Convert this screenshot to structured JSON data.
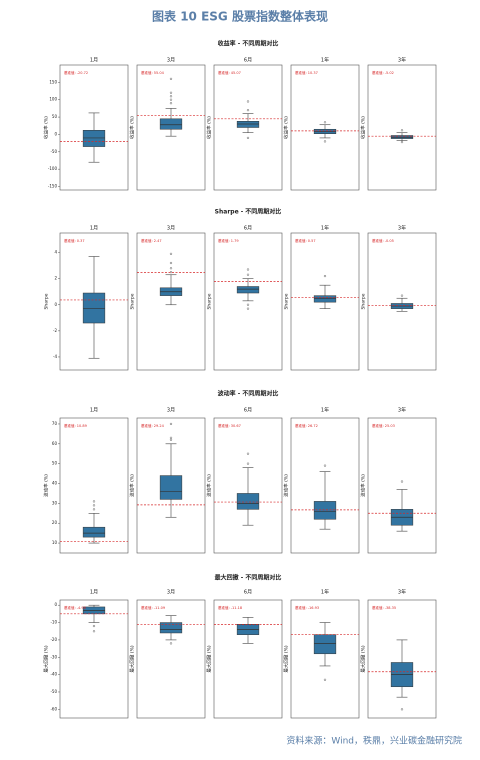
{
  "title": "图表 10  ESG 股票指数整体表现",
  "source": "资料来源：Wind，秩鼎，兴业碳金融研究院",
  "chart_data": [
    {
      "type": "box",
      "title": "收益率 - 不同周期对比",
      "ylabel": "收益率 (%)",
      "ylim": [
        -160,
        200
      ],
      "yticks": [
        -150,
        -100,
        -50,
        0,
        50,
        100,
        150
      ],
      "color": "#3274a1",
      "benchmark_color": "#d62728",
      "panels": [
        {
          "title": "1月",
          "whislo": -80,
          "q1": -35,
          "median": -10,
          "q3": 12,
          "whishi": 62,
          "fliers": [],
          "benchmark": -20.72,
          "benchmark_label": "基准值: -20.72"
        },
        {
          "title": "3月",
          "whislo": -5,
          "q1": 15,
          "median": 28,
          "q3": 45,
          "whishi": 75,
          "fliers": [
            90,
            100,
            110,
            120,
            160
          ],
          "benchmark": 55.04,
          "benchmark_label": "基准值: 55.04"
        },
        {
          "title": "6月",
          "whislo": 5,
          "q1": 20,
          "median": 30,
          "q3": 38,
          "whishi": 60,
          "fliers": [
            70,
            95,
            -10
          ],
          "benchmark": 45.07,
          "benchmark_label": "基准值: 45.07"
        },
        {
          "title": "1年",
          "whislo": -10,
          "q1": 2,
          "median": 8,
          "q3": 15,
          "whishi": 28,
          "fliers": [
            35,
            -20
          ],
          "benchmark": 10.37,
          "benchmark_label": "基准值: 10.37"
        },
        {
          "title": "3年",
          "whislo": -18,
          "q1": -12,
          "median": -8,
          "q3": -3,
          "whishi": 5,
          "fliers": [
            12,
            -22
          ],
          "benchmark": -5.02,
          "benchmark_label": "基准值: -5.02"
        }
      ]
    },
    {
      "type": "box",
      "title": "Sharpe - 不同周期对比",
      "ylabel": "Sharpe",
      "ylim": [
        -5,
        5.5
      ],
      "yticks": [
        -4,
        -2,
        0,
        2,
        4
      ],
      "color": "#3274a1",
      "benchmark_color": "#d62728",
      "panels": [
        {
          "title": "1月",
          "whislo": -4.1,
          "q1": -1.4,
          "median": -0.3,
          "q3": 0.9,
          "whishi": 3.7,
          "fliers": [],
          "benchmark": 0.37,
          "benchmark_label": "基准值: 0.37"
        },
        {
          "title": "3月",
          "whislo": 0,
          "q1": 0.7,
          "median": 1.0,
          "q3": 1.3,
          "whishi": 2.3,
          "fliers": [
            2.5,
            2.8,
            3.2,
            3.9
          ],
          "benchmark": 2.47,
          "benchmark_label": "基准值: 2.47"
        },
        {
          "title": "6月",
          "whislo": 0.3,
          "q1": 0.9,
          "median": 1.2,
          "q3": 1.4,
          "whishi": 2,
          "fliers": [
            2.3,
            2.7,
            0,
            -0.3
          ],
          "benchmark": 1.79,
          "benchmark_label": "基准值: 1.79"
        },
        {
          "title": "1年",
          "whislo": -0.3,
          "q1": 0.2,
          "median": 0.5,
          "q3": 0.7,
          "whishi": 1.5,
          "fliers": [
            2.2
          ],
          "benchmark": 0.57,
          "benchmark_label": "基准值: 0.57"
        },
        {
          "title": "3年",
          "whislo": -0.5,
          "q1": -0.3,
          "median": -0.1,
          "q3": 0.1,
          "whishi": 0.5,
          "fliers": [
            0.7
          ],
          "benchmark": -0.05,
          "benchmark_label": "基准值: -0.05"
        }
      ]
    },
    {
      "type": "box",
      "title": "波动率 - 不同周期对比",
      "ylabel": "波动率 (%)",
      "ylim": [
        5,
        73
      ],
      "yticks": [
        10,
        20,
        30,
        40,
        50,
        60,
        70
      ],
      "color": "#3274a1",
      "benchmark_color": "#d62728",
      "panels": [
        {
          "title": "1月",
          "whislo": 10,
          "q1": 13,
          "median": 15,
          "q3": 18,
          "whishi": 25,
          "fliers": [
            27,
            29,
            31
          ],
          "benchmark": 10.89,
          "benchmark_label": "基准值: 10.89"
        },
        {
          "title": "3月",
          "whislo": 23,
          "q1": 32,
          "median": 36,
          "q3": 44,
          "whishi": 60,
          "fliers": [
            62,
            63,
            70
          ],
          "benchmark": 29.24,
          "benchmark_label": "基准值: 29.24"
        },
        {
          "title": "6月",
          "whislo": 19,
          "q1": 27,
          "median": 30,
          "q3": 35,
          "whishi": 48,
          "fliers": [
            50,
            55
          ],
          "benchmark": 30.67,
          "benchmark_label": "基准值: 30.67"
        },
        {
          "title": "1年",
          "whislo": 17,
          "q1": 22,
          "median": 26,
          "q3": 31,
          "whishi": 46,
          "fliers": [
            49
          ],
          "benchmark": 26.72,
          "benchmark_label": "基准值: 26.72"
        },
        {
          "title": "3年",
          "whislo": 16,
          "q1": 19,
          "median": 23,
          "q3": 27,
          "whishi": 37,
          "fliers": [
            41
          ],
          "benchmark": 25.03,
          "benchmark_label": "基准值: 25.03"
        }
      ]
    },
    {
      "type": "box",
      "title": "最大回撤 - 不同周期对比",
      "ylabel": "最大回撤 (%)",
      "ylim": [
        -65,
        3
      ],
      "yticks": [
        0,
        -10,
        -20,
        -30,
        -40,
        -50,
        -60
      ],
      "color": "#3274a1",
      "benchmark_color": "#d62728",
      "panels": [
        {
          "title": "1月",
          "whislo": -10,
          "q1": -5,
          "median": -3,
          "q3": -1,
          "whishi": 0,
          "fliers": [
            -12,
            -15
          ],
          "benchmark": -4.96,
          "benchmark_label": "基准值: -4.96"
        },
        {
          "title": "3月",
          "whislo": -20,
          "q1": -16,
          "median": -14,
          "q3": -10,
          "whishi": -6,
          "fliers": [
            -22
          ],
          "benchmark": -11.09,
          "benchmark_label": "基准值: -11.09"
        },
        {
          "title": "6月",
          "whislo": -22,
          "q1": -17,
          "median": -14,
          "q3": -11,
          "whishi": -7,
          "fliers": [],
          "benchmark": -11.18,
          "benchmark_label": "基准值: -11.18"
        },
        {
          "title": "1年",
          "whislo": -35,
          "q1": -28,
          "median": -22,
          "q3": -17,
          "whishi": -10,
          "fliers": [
            -43
          ],
          "benchmark": -16.93,
          "benchmark_label": "基准值: -16.93"
        },
        {
          "title": "3年",
          "whislo": -53,
          "q1": -47,
          "median": -40,
          "q3": -33,
          "whishi": -20,
          "fliers": [
            -60
          ],
          "benchmark": -38.35,
          "benchmark_label": "基准值: -38.35"
        }
      ]
    }
  ]
}
